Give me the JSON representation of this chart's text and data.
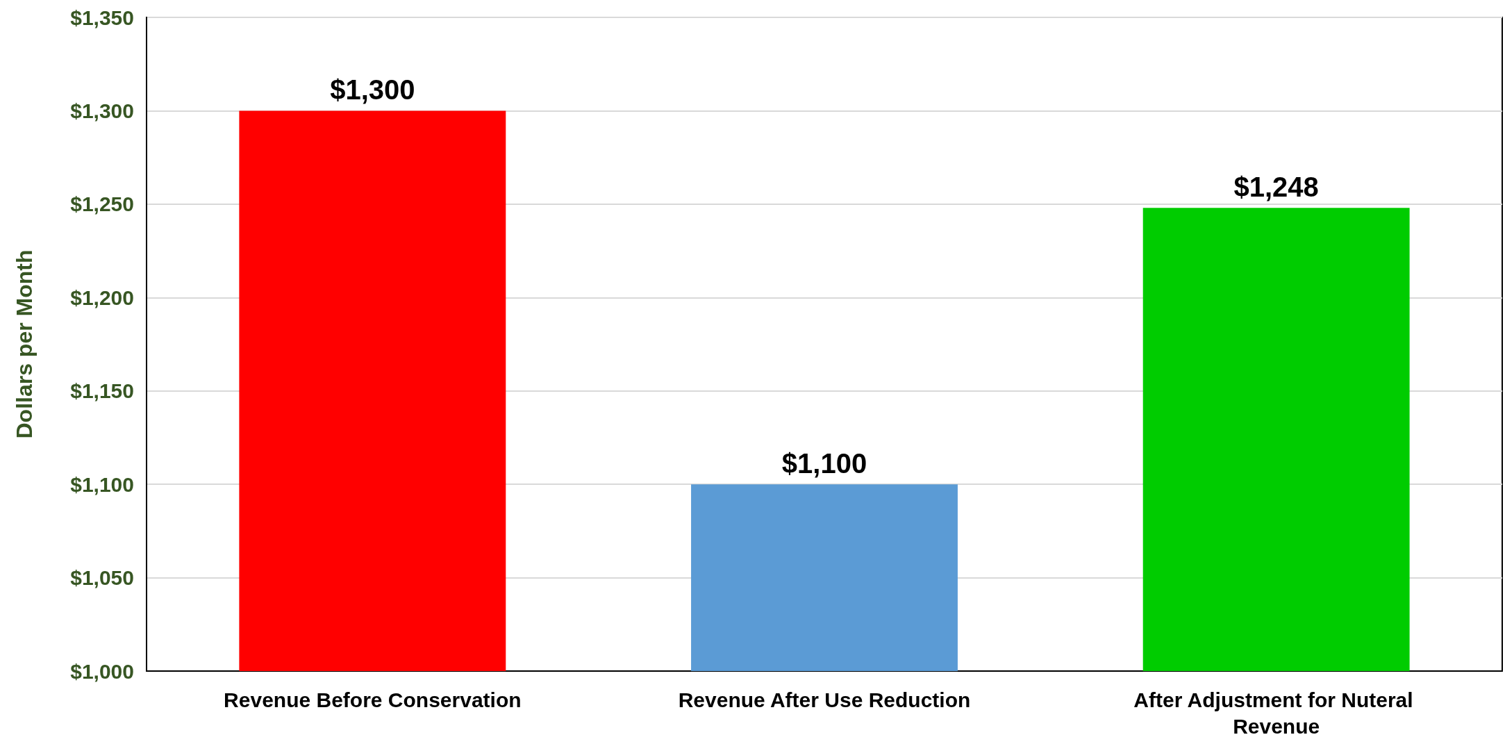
{
  "chart_data": {
    "type": "bar",
    "ylabel": "Dollars per Month",
    "categories": [
      "Revenue Before Conservation",
      "Revenue After Use Reduction",
      "After Adjustment for Nuteral Revenue"
    ],
    "values": [
      1300,
      1100,
      1248
    ],
    "colors": [
      "#ff0000",
      "#5b9bd5",
      "#00cc00"
    ],
    "value_labels": [
      "$1,300",
      "$1,100",
      "$1,248"
    ],
    "ylim": [
      1000,
      1350
    ],
    "yticks": [
      {
        "value": 1000,
        "label": "$1,000"
      },
      {
        "value": 1050,
        "label": "$1,050"
      },
      {
        "value": 1100,
        "label": "$1,100"
      },
      {
        "value": 1150,
        "label": "$1,150"
      },
      {
        "value": 1200,
        "label": "$1,200"
      },
      {
        "value": 1250,
        "label": "$1,250"
      },
      {
        "value": 1300,
        "label": "$1,300"
      },
      {
        "value": 1350,
        "label": "$1,350"
      }
    ],
    "grid": "y"
  }
}
